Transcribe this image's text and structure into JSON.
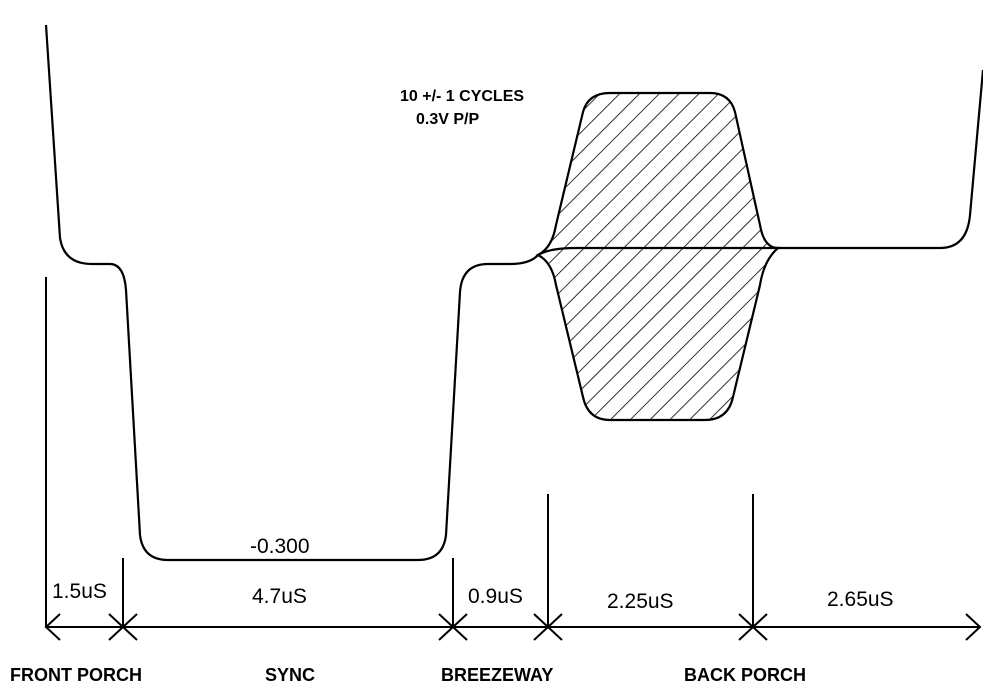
{
  "annotation": {
    "line1": "10 +/- 1 CYCLES",
    "line2": "0.3V P/P"
  },
  "sync_level_label": "-0.300",
  "durations": {
    "front_porch": "1.5uS",
    "sync": "4.7uS",
    "breezeway": "0.9uS",
    "burst": "2.25uS",
    "back_porch_tail": "2.65uS"
  },
  "sections": {
    "front_porch": "FRONT PORCH",
    "sync": "SYNC",
    "breezeway": "BREEZEWAY",
    "back_porch": "BACK PORCH"
  },
  "colors": {
    "stroke": "#000000",
    "background": "#ffffff"
  }
}
